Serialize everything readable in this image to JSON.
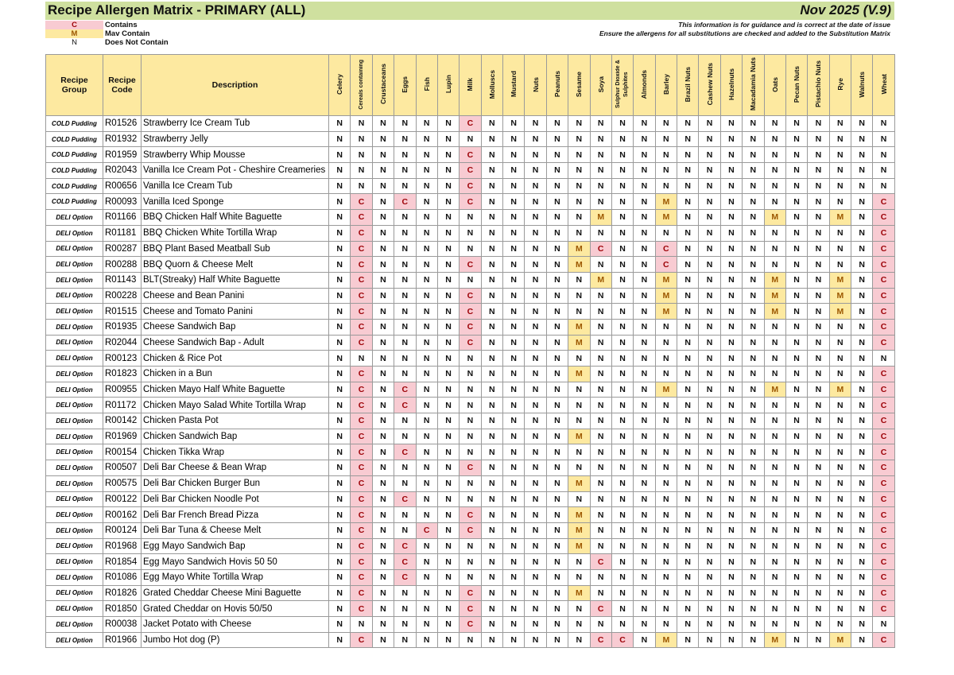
{
  "header": {
    "title": "Recipe Allergen Matrix - PRIMARY (ALL)",
    "version": "Nov 2025 (V.9)",
    "note_1": "This information is for guidance and is correct at the date of issue",
    "note_2": "Ensure the allergens for all substitutions are checked and added to the Substitution Matrix"
  },
  "legend": [
    {
      "key": "C",
      "label": "Contains"
    },
    {
      "key": "M",
      "label": "Mav Contain"
    },
    {
      "key": "N",
      "label": "Does Not Contain"
    }
  ],
  "colors": {
    "title_bar": "#cfe09f",
    "header": "#fde9a0",
    "contains_bg": "#f8cbd2",
    "contains_text": "#9c0006",
    "may_bg": "#fde9a0",
    "may_text": "#9c5700"
  },
  "columns": {
    "group": "Recipe Group",
    "code": "Recipe Code",
    "description": "Description",
    "allergens": [
      "Celery",
      "Cereals containing",
      "Crustaceans",
      "Eggs",
      "Fish",
      "Lupin",
      "Milk",
      "Molluscs",
      "Mustard",
      "Nuts",
      "Peanuts",
      "Sesame",
      "Soya",
      "Sulphur Dioxide & Sulphites",
      "Almonds",
      "Barley",
      "Brazil Nuts",
      "Cashew Nuts",
      "Hazelnuts",
      "Macadamia Nuts",
      "Oats",
      "Pecan Nuts",
      "Pistachio Nuts",
      "Rye",
      "Walnuts",
      "Wheat"
    ]
  },
  "rows": [
    {
      "group": "COLD Pudding",
      "code": "R01526",
      "description": "Strawberry Ice Cream Tub",
      "allergens": "NNNNNNCNNNNNNNNNNNNNNNNNNN"
    },
    {
      "group": "COLD Pudding",
      "code": "R01932",
      "description": "Strawberry Jelly",
      "allergens": "NNNNNNNNNNNNNNNNNNNNNNNNNN"
    },
    {
      "group": "COLD Pudding",
      "code": "R01959",
      "description": "Strawberry Whip Mousse",
      "allergens": "NNNNNNCNNNNNNNNNNNNNNNNNNN"
    },
    {
      "group": "COLD Pudding",
      "code": "R02043",
      "description": "Vanilla Ice Cream Pot - Cheshire Creameries",
      "allergens": "NNNNNNCNNNNNNNNNNNNNNNNNNN"
    },
    {
      "group": "COLD Pudding",
      "code": "R00656",
      "description": "Vanilla Ice Cream Tub",
      "allergens": "NNNNNNCNNNNNNNNNNNNNNNNNNN"
    },
    {
      "group": "COLD Pudding",
      "code": "R00093",
      "description": "Vanilla Iced Sponge",
      "allergens": "NCNCNNCNNNNNNNNMNNNNNNNNNC"
    },
    {
      "group": "DELI Option",
      "code": "R01166",
      "description": "BBQ Chicken Half White Baguette",
      "allergens": "NCNNNNNNNNNNMNNMNNNNMNNMNC"
    },
    {
      "group": "DELI Option",
      "code": "R01181",
      "description": "BBQ Chicken White Tortilla Wrap",
      "allergens": "NCNNNNNNNNNNNNNNNNNNNNNNNC"
    },
    {
      "group": "DELI Option",
      "code": "R00287",
      "description": "BBQ Plant Based Meatball Sub",
      "allergens": "NCNNNNNNNNNMCNNCNNNNNNNNNC"
    },
    {
      "group": "DELI Option",
      "code": "R00288",
      "description": "BBQ Quorn & Cheese Melt",
      "allergens": "NCNNNNCNNNNMNNNCNNNNNNNNNC"
    },
    {
      "group": "DELI Option",
      "code": "R01143",
      "description": "BLT(Streaky) Half White Baguette",
      "allergens": "NCNNNNNNNNNNMNNMNNNNMNNMNC"
    },
    {
      "group": "DELI Option",
      "code": "R00228",
      "description": "Cheese and Bean Panini",
      "allergens": "NCNNNNCNNNNNNNNMNNNNMNNMNC"
    },
    {
      "group": "DELI Option",
      "code": "R01515",
      "description": "Cheese and Tomato Panini",
      "allergens": "NCNNNNCNNNNNNNNMNNNNMNNMNC"
    },
    {
      "group": "DELI Option",
      "code": "R01935",
      "description": "Cheese Sandwich Bap",
      "allergens": "NCNNNNCNNNNMNNNNNNNNNNNNNC"
    },
    {
      "group": "DELI Option",
      "code": "R02044",
      "description": "Cheese Sandwich Bap - Adult",
      "allergens": "NCNNNNCNNNNMNNNNNNNNNNNNNC"
    },
    {
      "group": "DELI Option",
      "code": "R00123",
      "description": "Chicken & Rice Pot",
      "allergens": "NNNNNNNNNNNNNNNNNNNNNNNNNN"
    },
    {
      "group": "DELI Option",
      "code": "R01823",
      "description": "Chicken in a Bun",
      "allergens": "NCNNNNNNNNNMNNNNNNNNNNNNNC"
    },
    {
      "group": "DELI Option",
      "code": "R00955",
      "description": "Chicken Mayo Half White Baguette",
      "allergens": "NCNCNNNNNNNNNNNMNNNNMNNMNC"
    },
    {
      "group": "DELI Option",
      "code": "R01172",
      "description": "Chicken Mayo Salad White Tortilla Wrap",
      "allergens": "NCNCNNNNNNNNNNNNNNNNNNNNNC"
    },
    {
      "group": "DELI Option",
      "code": "R00142",
      "description": "Chicken Pasta Pot",
      "allergens": "NCNNNNNNNNNNNNNNNNNNNNNNNC"
    },
    {
      "group": "DELI Option",
      "code": "R01969",
      "description": "Chicken Sandwich Bap",
      "allergens": "NCNNNNNNNNNMNNNNNNNNNNNNNC"
    },
    {
      "group": "DELI Option",
      "code": "R00154",
      "description": "Chicken Tikka Wrap",
      "allergens": "NCNCNNNNNNNNNNNNNNNNNNNNNC"
    },
    {
      "group": "DELI Option",
      "code": "R00507",
      "description": "Deli Bar Cheese & Bean Wrap",
      "allergens": "NCNNNNCNNNNNNNNNNNNNNNNNNC"
    },
    {
      "group": "DELI Option",
      "code": "R00575",
      "description": "Deli Bar Chicken Burger Bun",
      "allergens": "NCNNNNNNNNNMNNNNNNNNNNNNNC"
    },
    {
      "group": "DELI Option",
      "code": "R00122",
      "description": "Deli Bar Chicken Noodle Pot",
      "allergens": "NCNCNNNNNNNNNNNNNNNNNNNNNC"
    },
    {
      "group": "DELI Option",
      "code": "R00162",
      "description": "Deli Bar French Bread Pizza",
      "allergens": "NCNNNNCNNNNMNNNNNNNNNNNNNC"
    },
    {
      "group": "DELI Option",
      "code": "R00124",
      "description": "Deli Bar Tuna & Cheese Melt",
      "allergens": "NCNNCNCNNNNMNNNNNNNNNNNNNC"
    },
    {
      "group": "DELI Option",
      "code": "R01968",
      "description": "Egg Mayo Sandwich Bap",
      "allergens": "NCNCNNNNNNNMNNNNNNNNNNNNNC"
    },
    {
      "group": "DELI Option",
      "code": "R01854",
      "description": "Egg Mayo Sandwich Hovis 50 50",
      "allergens": "NCNCNNNNNNNNCNNNNNNNNNNNNC"
    },
    {
      "group": "DELI Option",
      "code": "R01086",
      "description": "Egg Mayo White Tortilla Wrap",
      "allergens": "NCNCNNNNNNNNNNNNNNNNNNNNNC"
    },
    {
      "group": "DELI Option",
      "code": "R01826",
      "description": "Grated Cheddar Cheese Mini Baguette",
      "allergens": "NCNNNNCNNNNMNNNNNNNNNNNNNC"
    },
    {
      "group": "DELI Option",
      "code": "R01850",
      "description": "Grated Cheddar on Hovis 50/50",
      "allergens": "NCNNNNCNNNNNCNNNNNNNNNNNNC"
    },
    {
      "group": "DELI Option",
      "code": "R00038",
      "description": "Jacket Potato with Cheese",
      "allergens": "NNNNNNCNNNNNNNNNNNNNNNNNNN"
    },
    {
      "group": "DELI Option",
      "code": "R01966",
      "description": "Jumbo Hot dog (P)",
      "allergens": "NCNNNNNNNNNNCCNMNNNNMNNMNC"
    }
  ]
}
